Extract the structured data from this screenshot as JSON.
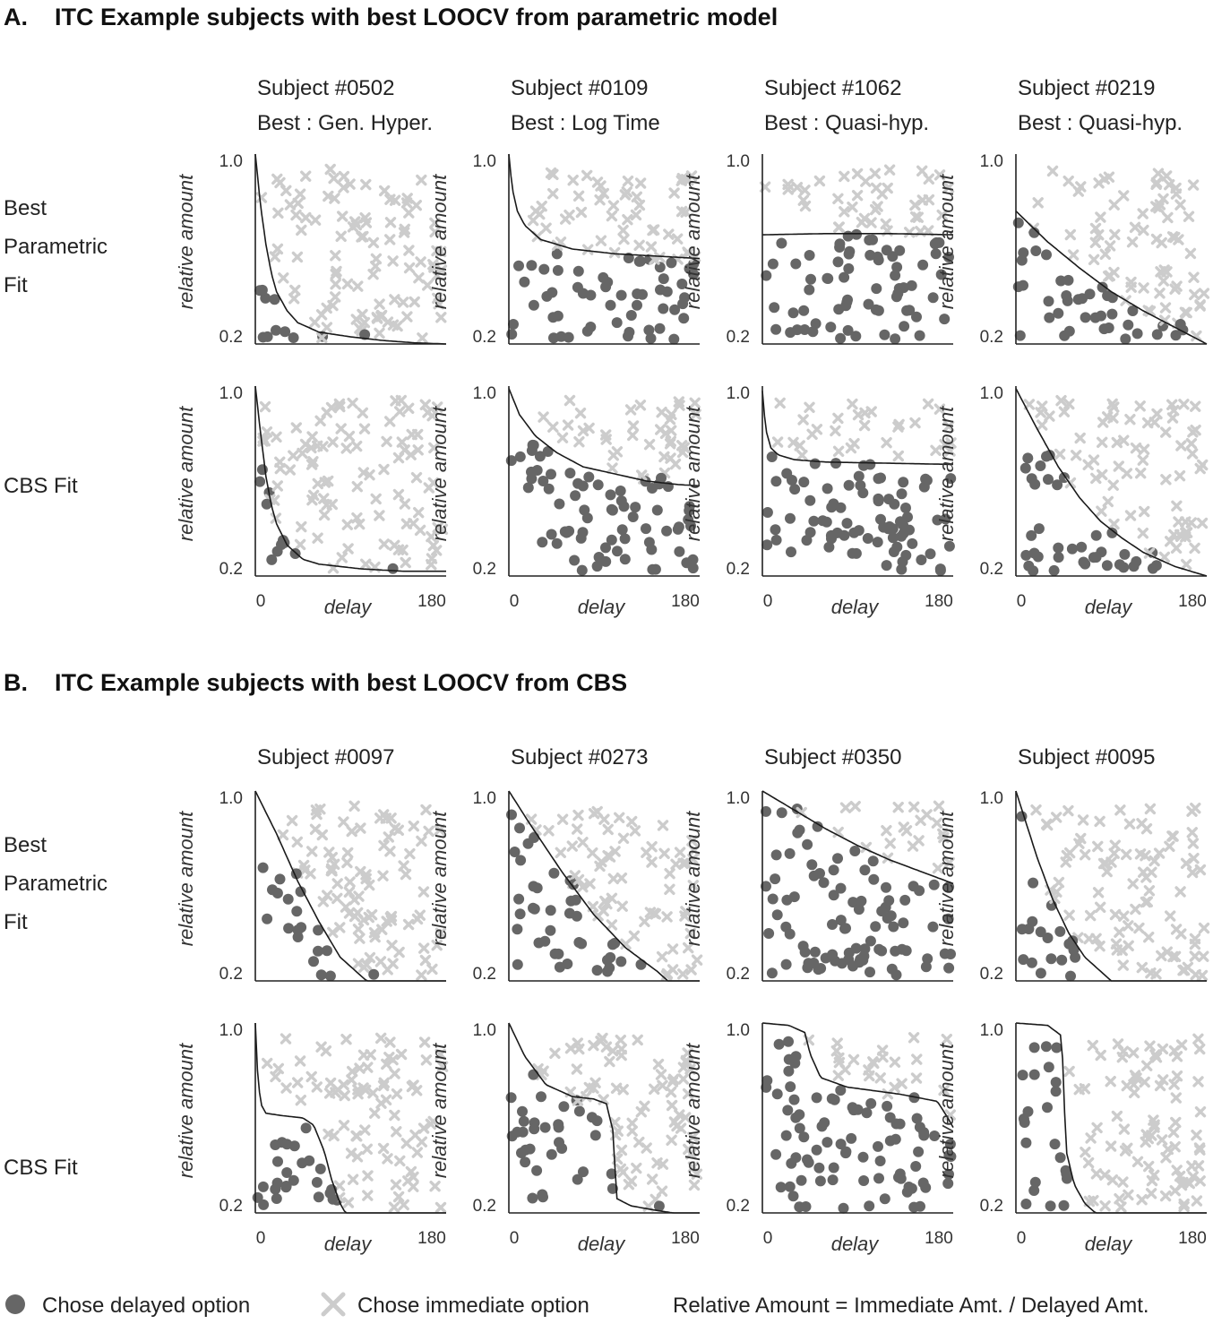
{
  "colors": {
    "delayed": "#666666",
    "immediate": "#cccccc",
    "curve": "#1a1a1a",
    "axis": "#222222"
  },
  "sections": [
    {
      "title": "A.    ITC Example subjects with best LOOCV from parametric model",
      "subjects": [
        {
          "id": "Subject #0502",
          "best": "Best : Gen. Hyper."
        },
        {
          "id": "Subject #0109",
          "best": "Best : Log Time"
        },
        {
          "id": "Subject #1062",
          "best": "Best : Quasi-hyp."
        },
        {
          "id": "Subject #0219",
          "best": "Best : Quasi-hyp."
        }
      ],
      "rows": [
        {
          "label_lines": [
            "Best",
            "Parametric",
            "Fit"
          ]
        },
        {
          "label_lines": [
            "CBS Fit"
          ]
        }
      ]
    },
    {
      "title": "B.    ITC Example subjects with best LOOCV from CBS",
      "subjects": [
        {
          "id": "Subject #0097",
          "best": ""
        },
        {
          "id": "Subject #0273",
          "best": ""
        },
        {
          "id": "Subject #0350",
          "best": ""
        },
        {
          "id": "Subject #0095",
          "best": ""
        }
      ],
      "rows": [
        {
          "label_lines": [
            "Best",
            "Parametric",
            "Fit"
          ]
        },
        {
          "label_lines": [
            "CBS Fit"
          ]
        }
      ]
    }
  ],
  "axes": {
    "ylabel": "relative amount",
    "xlabel": "delay",
    "yticks": [
      "1.0",
      "0.2"
    ],
    "xticks": [
      "0",
      "180"
    ],
    "xlim": [
      0,
      180
    ],
    "ylim": [
      0.2,
      1.0
    ]
  },
  "legend": {
    "delayed": "Chose delayed option",
    "immediate": "Chose immediate option",
    "note": "Relative Amount = Immediate Amt. / Delayed Amt."
  },
  "chart_data": [
    {
      "type": "scatter",
      "panel": "A-0502-parametric",
      "curve": {
        "model": "Gen. Hyper.",
        "points": [
          [
            0,
            1.0
          ],
          [
            5,
            0.78
          ],
          [
            10,
            0.62
          ],
          [
            15,
            0.5
          ],
          [
            20,
            0.42
          ],
          [
            30,
            0.34
          ],
          [
            40,
            0.29
          ],
          [
            60,
            0.25
          ],
          [
            90,
            0.23
          ],
          [
            120,
            0.215
          ],
          [
            150,
            0.205
          ],
          [
            180,
            0.2
          ]
        ]
      }
    },
    {
      "type": "scatter",
      "panel": "A-0109-parametric",
      "curve": {
        "model": "Log Time",
        "points": [
          [
            0,
            1.0
          ],
          [
            3,
            0.86
          ],
          [
            8,
            0.76
          ],
          [
            15,
            0.7
          ],
          [
            30,
            0.64
          ],
          [
            60,
            0.6
          ],
          [
            100,
            0.58
          ],
          [
            140,
            0.57
          ],
          [
            180,
            0.56
          ]
        ]
      }
    },
    {
      "type": "scatter",
      "panel": "A-1062-parametric",
      "curve": {
        "model": "Quasi-hyp.",
        "points": [
          [
            0,
            0.66
          ],
          [
            60,
            0.665
          ],
          [
            120,
            0.665
          ],
          [
            180,
            0.66
          ]
        ]
      }
    },
    {
      "type": "scatter",
      "panel": "A-0219-parametric",
      "curve": {
        "model": "Quasi-hyp.",
        "points": [
          [
            0,
            0.76
          ],
          [
            30,
            0.63
          ],
          [
            60,
            0.52
          ],
          [
            90,
            0.42
          ],
          [
            120,
            0.34
          ],
          [
            150,
            0.27
          ],
          [
            180,
            0.2
          ]
        ]
      }
    },
    {
      "type": "scatter",
      "panel": "A-0502-cbs",
      "curve": {
        "model": "CBS",
        "points": [
          [
            0,
            1.0
          ],
          [
            5,
            0.8
          ],
          [
            10,
            0.62
          ],
          [
            15,
            0.5
          ],
          [
            20,
            0.42
          ],
          [
            30,
            0.33
          ],
          [
            45,
            0.27
          ],
          [
            60,
            0.25
          ],
          [
            100,
            0.23
          ],
          [
            140,
            0.22
          ],
          [
            180,
            0.22
          ]
        ]
      }
    },
    {
      "type": "scatter",
      "panel": "A-0109-cbs",
      "curve": {
        "model": "CBS",
        "points": [
          [
            0,
            0.99
          ],
          [
            10,
            0.88
          ],
          [
            25,
            0.79
          ],
          [
            45,
            0.72
          ],
          [
            70,
            0.66
          ],
          [
            100,
            0.63
          ],
          [
            130,
            0.6
          ],
          [
            160,
            0.585
          ],
          [
            180,
            0.58
          ]
        ]
      }
    },
    {
      "type": "scatter",
      "panel": "A-1062-cbs",
      "curve": {
        "model": "CBS",
        "points": [
          [
            0,
            0.98
          ],
          [
            3,
            0.82
          ],
          [
            8,
            0.74
          ],
          [
            15,
            0.71
          ],
          [
            30,
            0.69
          ],
          [
            60,
            0.68
          ],
          [
            120,
            0.675
          ],
          [
            180,
            0.67
          ]
        ]
      }
    },
    {
      "type": "scatter",
      "panel": "A-0219-cbs",
      "curve": {
        "model": "CBS",
        "points": [
          [
            0,
            0.99
          ],
          [
            20,
            0.82
          ],
          [
            40,
            0.66
          ],
          [
            60,
            0.53
          ],
          [
            80,
            0.43
          ],
          [
            100,
            0.36
          ],
          [
            120,
            0.3
          ],
          [
            150,
            0.24
          ],
          [
            180,
            0.2
          ]
        ]
      }
    },
    {
      "type": "scatter",
      "panel": "B-0097-parametric",
      "curve": {
        "model": "parametric",
        "points": [
          [
            0,
            1.0
          ],
          [
            20,
            0.82
          ],
          [
            40,
            0.62
          ],
          [
            60,
            0.45
          ],
          [
            80,
            0.3
          ],
          [
            105,
            0.2
          ]
        ]
      }
    },
    {
      "type": "scatter",
      "panel": "B-0273-parametric",
      "curve": {
        "model": "parametric",
        "points": [
          [
            0,
            1.0
          ],
          [
            20,
            0.86
          ],
          [
            50,
            0.66
          ],
          [
            80,
            0.48
          ],
          [
            110,
            0.34
          ],
          [
            140,
            0.24
          ],
          [
            150,
            0.2
          ]
        ]
      }
    },
    {
      "type": "scatter",
      "panel": "B-0350-parametric",
      "curve": {
        "model": "parametric",
        "points": [
          [
            0,
            1.0
          ],
          [
            30,
            0.92
          ],
          [
            60,
            0.84
          ],
          [
            90,
            0.77
          ],
          [
            120,
            0.71
          ],
          [
            150,
            0.66
          ],
          [
            180,
            0.61
          ]
        ]
      }
    },
    {
      "type": "scatter",
      "panel": "B-0095-parametric",
      "curve": {
        "model": "parametric",
        "points": [
          [
            0,
            1.0
          ],
          [
            10,
            0.86
          ],
          [
            20,
            0.72
          ],
          [
            35,
            0.54
          ],
          [
            50,
            0.4
          ],
          [
            65,
            0.3
          ],
          [
            80,
            0.24
          ],
          [
            90,
            0.2
          ]
        ]
      }
    },
    {
      "type": "scatter",
      "panel": "B-0097-cbs",
      "curve": {
        "model": "CBS",
        "points": [
          [
            0,
            1.0
          ],
          [
            2,
            0.8
          ],
          [
            5,
            0.66
          ],
          [
            10,
            0.62
          ],
          [
            25,
            0.61
          ],
          [
            45,
            0.6
          ],
          [
            55,
            0.57
          ],
          [
            65,
            0.46
          ],
          [
            72,
            0.34
          ],
          [
            80,
            0.24
          ],
          [
            85,
            0.2
          ]
        ]
      }
    },
    {
      "type": "scatter",
      "panel": "B-0273-cbs",
      "curve": {
        "model": "CBS",
        "points": [
          [
            0,
            1.0
          ],
          [
            15,
            0.86
          ],
          [
            35,
            0.74
          ],
          [
            60,
            0.69
          ],
          [
            80,
            0.68
          ],
          [
            92,
            0.66
          ],
          [
            98,
            0.55
          ],
          [
            100,
            0.4
          ],
          [
            102,
            0.26
          ],
          [
            115,
            0.23
          ],
          [
            140,
            0.21
          ],
          [
            155,
            0.2
          ]
        ]
      }
    },
    {
      "type": "scatter",
      "panel": "B-0350-cbs",
      "curve": {
        "model": "CBS",
        "points": [
          [
            0,
            1.0
          ],
          [
            25,
            0.99
          ],
          [
            40,
            0.96
          ],
          [
            45,
            0.87
          ],
          [
            55,
            0.77
          ],
          [
            80,
            0.73
          ],
          [
            130,
            0.7
          ],
          [
            165,
            0.67
          ],
          [
            175,
            0.6
          ],
          [
            180,
            0.56
          ]
        ]
      }
    },
    {
      "type": "scatter",
      "panel": "B-0095-cbs",
      "curve": {
        "model": "CBS",
        "points": [
          [
            0,
            1.0
          ],
          [
            30,
            0.99
          ],
          [
            42,
            0.95
          ],
          [
            45,
            0.8
          ],
          [
            46,
            0.62
          ],
          [
            48,
            0.45
          ],
          [
            55,
            0.32
          ],
          [
            65,
            0.24
          ],
          [
            75,
            0.2
          ]
        ]
      }
    }
  ]
}
